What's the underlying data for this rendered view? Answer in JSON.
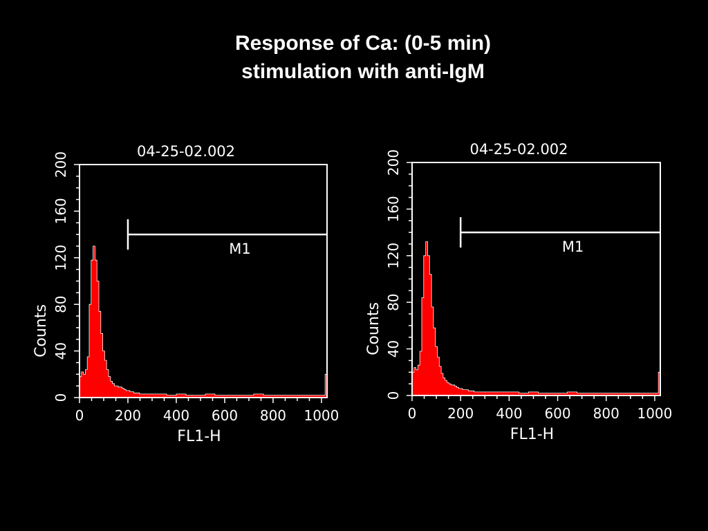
{
  "slide": {
    "title_line1": "Response of Ca:  (0-5 min)",
    "title_line2": "stimulation with anti-IgM"
  },
  "colors": {
    "background": "#000000",
    "foreground": "#ffffff",
    "histogram_fill": "#ff0000"
  },
  "chart_data": [
    {
      "type": "histogram",
      "title": "04-25-02.002",
      "xlabel": "FL1-H",
      "ylabel": "Counts",
      "xlim": [
        0,
        1023
      ],
      "ylim": [
        0,
        200
      ],
      "x_ticks": [
        0,
        200,
        400,
        600,
        800,
        1000
      ],
      "y_ticks": [
        0,
        40,
        80,
        120,
        160,
        200
      ],
      "marker": {
        "label": "M1",
        "start": 200,
        "end": 1023,
        "height": 140
      },
      "histogram": {
        "bin_centers": [
          4,
          12,
          20,
          28,
          36,
          44,
          52,
          60,
          68,
          76,
          84,
          92,
          100,
          108,
          116,
          124,
          132,
          140,
          148,
          156,
          164,
          172,
          180,
          188,
          196,
          204,
          212,
          220,
          228,
          236,
          244,
          252,
          260,
          268,
          276,
          284,
          292,
          300,
          340,
          380,
          420,
          460,
          500,
          540,
          580,
          620,
          660,
          700,
          740,
          780,
          820,
          860,
          900,
          940,
          980,
          1010,
          1020
        ],
        "counts": [
          18,
          22,
          20,
          24,
          35,
          80,
          118,
          130,
          118,
          100,
          74,
          55,
          40,
          32,
          24,
          18,
          14,
          12,
          10,
          10,
          9,
          9,
          8,
          7,
          6,
          6,
          5,
          5,
          4,
          4,
          4,
          3,
          3,
          3,
          3,
          3,
          3,
          3,
          3,
          2,
          3,
          2,
          2,
          3,
          2,
          2,
          2,
          2,
          3,
          2,
          2,
          2,
          2,
          2,
          2,
          2,
          20
        ]
      }
    },
    {
      "type": "histogram",
      "title": "04-25-02.002",
      "xlabel": "FL1-H",
      "ylabel": "Counts",
      "xlim": [
        0,
        1023
      ],
      "ylim": [
        0,
        200
      ],
      "x_ticks": [
        0,
        200,
        400,
        600,
        800,
        1000
      ],
      "y_ticks": [
        0,
        40,
        80,
        120,
        160,
        200
      ],
      "marker": {
        "label": "M1",
        "start": 200,
        "end": 1023,
        "height": 140
      },
      "histogram": {
        "bin_centers": [
          4,
          12,
          20,
          28,
          36,
          44,
          52,
          60,
          68,
          76,
          84,
          92,
          100,
          108,
          116,
          124,
          132,
          140,
          148,
          156,
          164,
          172,
          180,
          188,
          196,
          204,
          212,
          220,
          228,
          236,
          244,
          252,
          260,
          268,
          276,
          284,
          292,
          300,
          340,
          380,
          420,
          460,
          500,
          540,
          580,
          620,
          660,
          700,
          740,
          780,
          820,
          860,
          900,
          940,
          980,
          1010,
          1020
        ],
        "counts": [
          20,
          24,
          22,
          26,
          38,
          84,
          120,
          132,
          120,
          104,
          76,
          58,
          42,
          33,
          25,
          19,
          15,
          13,
          11,
          10,
          9,
          9,
          8,
          7,
          6,
          6,
          5,
          5,
          5,
          4,
          4,
          4,
          3,
          3,
          3,
          3,
          3,
          3,
          3,
          3,
          3,
          2,
          3,
          2,
          2,
          2,
          3,
          2,
          2,
          2,
          2,
          2,
          2,
          2,
          2,
          2,
          20
        ]
      }
    }
  ]
}
